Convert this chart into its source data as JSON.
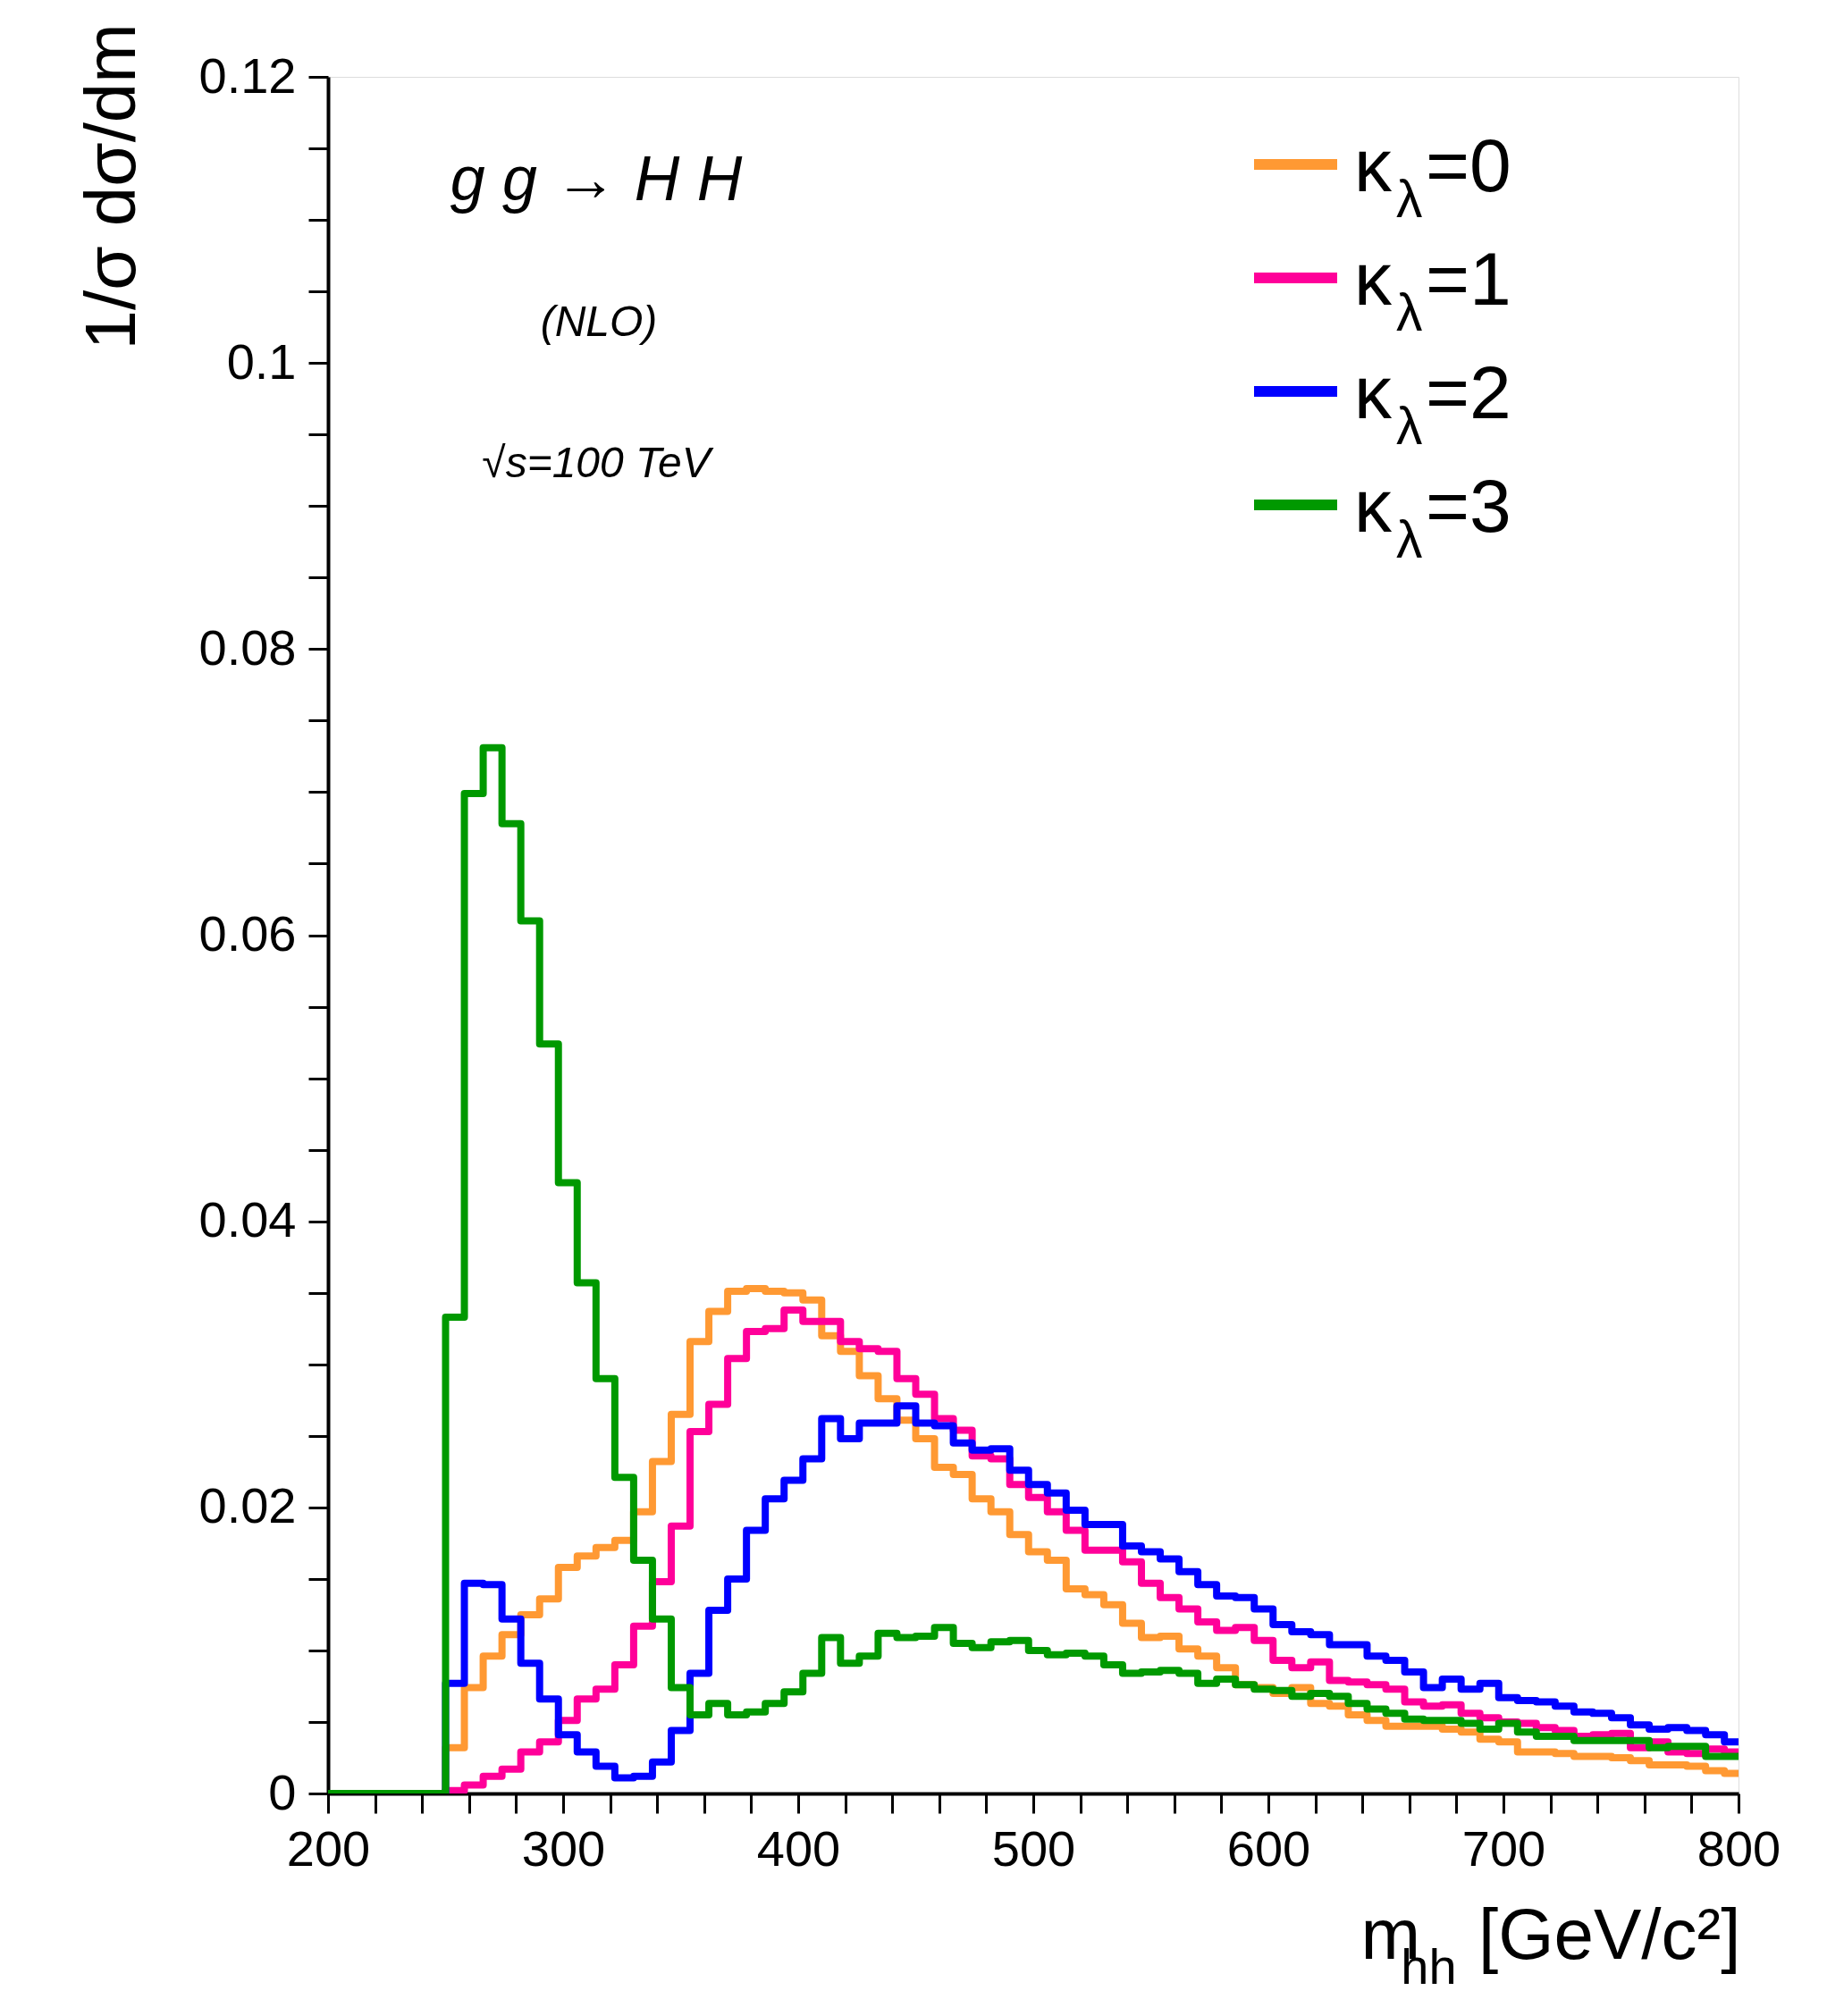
{
  "chart_data": {
    "type": "histogram",
    "xlabel": "m$_{hh}$ [GeV/c²]",
    "ylabel": "1/σ dσ/dm",
    "annotations": [
      "g g → H H",
      "(NLO)",
      "√s=100 TeV"
    ],
    "bins": [
      200,
      250,
      258,
      266,
      274,
      282,
      290,
      298,
      306,
      314,
      322,
      330,
      338,
      346,
      354,
      362,
      370,
      378,
      386,
      394,
      402,
      410,
      418,
      426,
      434,
      442,
      450,
      458,
      466,
      474,
      482,
      490,
      498,
      506,
      514,
      522,
      530,
      538,
      546,
      554,
      562,
      570,
      578,
      586,
      594,
      602,
      610,
      618,
      626,
      634,
      642,
      650,
      658,
      666,
      674,
      682,
      690,
      698,
      706,
      714,
      722,
      730,
      738,
      746,
      754,
      762,
      770,
      778,
      786,
      794,
      800
    ],
    "series": [
      {
        "name": "κ$_{λ}$=0",
        "color": "#ff9933",
        "values": [
          0,
          0.0032,
          0.0074,
          0.0096,
          0.0111,
          0.0125,
          0.0136,
          0.0158,
          0.0166,
          0.0172,
          0.0177,
          0.0197,
          0.0232,
          0.0265,
          0.0316,
          0.0337,
          0.0351,
          0.0353,
          0.0351,
          0.035,
          0.0345,
          0.032,
          0.0309,
          0.0292,
          0.0276,
          0.0261,
          0.0248,
          0.0228,
          0.0223,
          0.0206,
          0.0197,
          0.0181,
          0.0169,
          0.0163,
          0.0143,
          0.0139,
          0.0132,
          0.0119,
          0.0109,
          0.011,
          0.0101,
          0.0096,
          0.0088,
          0.0076,
          0.0074,
          0.007,
          0.0074,
          0.0063,
          0.0061,
          0.0055,
          0.0051,
          0.0047,
          0.0047,
          0.0047,
          0.0045,
          0.0043,
          0.0038,
          0.0036,
          0.0029,
          0.0029,
          0.0028,
          0.0026,
          0.0026,
          0.0025,
          0.0023,
          0.002,
          0.002,
          0.0019,
          0.0016,
          0.0014
        ]
      },
      {
        "name": "κ$_{λ}$=1",
        "color": "#ff0099",
        "values": [
          0,
          0.0002,
          0.0006,
          0.0012,
          0.0017,
          0.0029,
          0.0036,
          0.0051,
          0.0066,
          0.0073,
          0.009,
          0.0117,
          0.0148,
          0.0187,
          0.0253,
          0.0272,
          0.0304,
          0.0323,
          0.0325,
          0.0338,
          0.033,
          0.033,
          0.0316,
          0.0311,
          0.0309,
          0.029,
          0.0279,
          0.0262,
          0.0254,
          0.0236,
          0.0234,
          0.0216,
          0.0207,
          0.0197,
          0.0184,
          0.017,
          0.017,
          0.0162,
          0.0147,
          0.0137,
          0.0129,
          0.012,
          0.0114,
          0.0116,
          0.0107,
          0.0093,
          0.0088,
          0.0092,
          0.0079,
          0.0078,
          0.0076,
          0.0073,
          0.0064,
          0.0061,
          0.0062,
          0.0056,
          0.0053,
          0.005,
          0.0049,
          0.0046,
          0.0044,
          0.004,
          0.0041,
          0.0042,
          0.0032,
          0.0036,
          0.0029,
          0.0028,
          0.0031,
          0.0029
        ]
      },
      {
        "name": "κ$_{λ}$=2",
        "color": "#0000ff",
        "values": [
          0,
          0.0077,
          0.0147,
          0.0146,
          0.0122,
          0.0091,
          0.0066,
          0.0041,
          0.0029,
          0.0019,
          0.0011,
          0.0012,
          0.0022,
          0.0044,
          0.0084,
          0.0128,
          0.015,
          0.0184,
          0.0206,
          0.0219,
          0.0234,
          0.0262,
          0.0248,
          0.0259,
          0.0259,
          0.0271,
          0.0259,
          0.0257,
          0.0245,
          0.024,
          0.0241,
          0.0226,
          0.0216,
          0.021,
          0.0198,
          0.0188,
          0.0188,
          0.0173,
          0.0169,
          0.0164,
          0.0155,
          0.0146,
          0.0138,
          0.0137,
          0.0129,
          0.0118,
          0.0113,
          0.0111,
          0.0104,
          0.0104,
          0.0096,
          0.0093,
          0.0085,
          0.0074,
          0.008,
          0.0073,
          0.0077,
          0.0067,
          0.0065,
          0.0064,
          0.0061,
          0.0057,
          0.0056,
          0.0053,
          0.0048,
          0.0045,
          0.0046,
          0.0044,
          0.0041,
          0.0036
        ]
      },
      {
        "name": "κ$_{λ}$=3",
        "color": "#009900",
        "values": [
          0,
          0.0333,
          0.0699,
          0.0731,
          0.0678,
          0.061,
          0.0524,
          0.0427,
          0.0357,
          0.029,
          0.0221,
          0.0163,
          0.0122,
          0.0074,
          0.0055,
          0.0063,
          0.0055,
          0.0057,
          0.0063,
          0.0071,
          0.0084,
          0.0109,
          0.0091,
          0.0096,
          0.0112,
          0.0109,
          0.011,
          0.0116,
          0.0105,
          0.0102,
          0.0106,
          0.0107,
          0.01,
          0.0097,
          0.0098,
          0.0096,
          0.009,
          0.0084,
          0.0085,
          0.0086,
          0.0084,
          0.0077,
          0.008,
          0.0076,
          0.0073,
          0.0072,
          0.0068,
          0.007,
          0.0068,
          0.0063,
          0.0059,
          0.0056,
          0.0052,
          0.0051,
          0.0051,
          0.0049,
          0.0045,
          0.0049,
          0.0043,
          0.004,
          0.004,
          0.0037,
          0.0037,
          0.0037,
          0.0037,
          0.0032,
          0.0033,
          0.0033,
          0.0026,
          0.0026
        ]
      }
    ],
    "xlim": [
      200,
      800
    ],
    "xticks": [
      200,
      300,
      400,
      500,
      600,
      700,
      800
    ],
    "ylim": [
      0,
      0.12
    ],
    "yticks": [
      0,
      0.02,
      0.04,
      0.06,
      0.08,
      0.1,
      0.12
    ],
    "legend": "top right",
    "line_style": "solid"
  }
}
